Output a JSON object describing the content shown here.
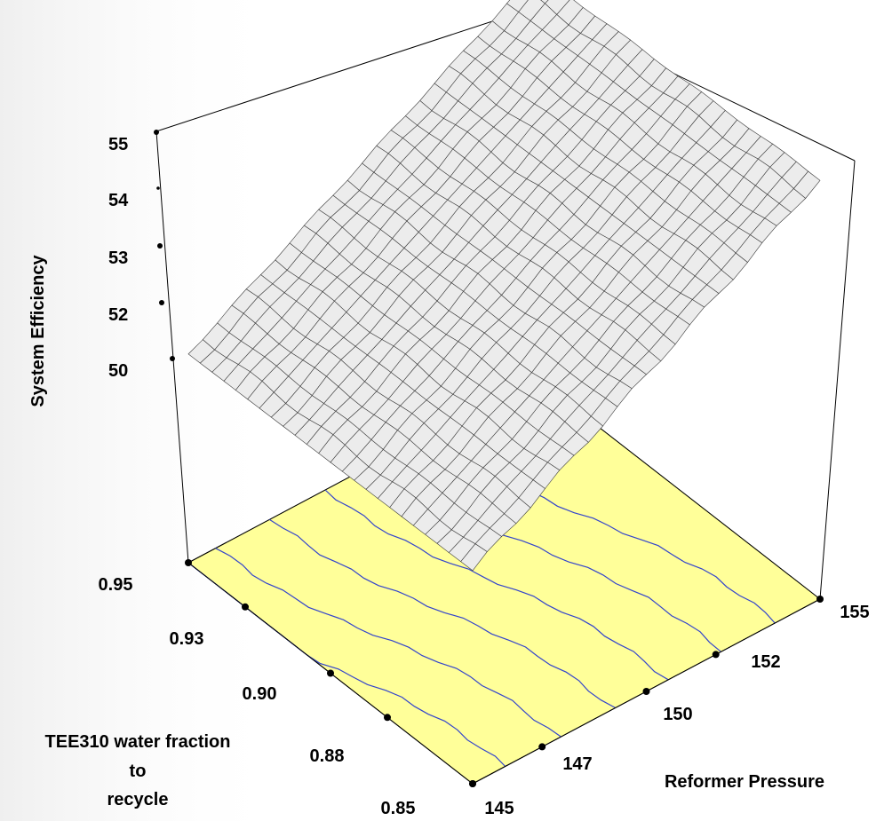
{
  "chart_data": {
    "type": "surface",
    "title": "",
    "zlabel": "System Efficiency",
    "xlabel": "Reformer Pressure",
    "ylabel_lines": [
      "TEE310 water fraction",
      "to",
      "recycle"
    ],
    "x_ticks": [
      "145",
      "147",
      "150",
      "152",
      "155"
    ],
    "y_ticks": [
      "0.85",
      "0.88",
      "0.90",
      "0.93",
      "0.95"
    ],
    "z_ticks": [
      "50",
      "52",
      "53",
      "54",
      "55"
    ],
    "x_range": [
      145,
      155
    ],
    "y_range": [
      0.85,
      0.95
    ],
    "z_range": [
      50,
      55
    ],
    "surface_corners": [
      {
        "x": 145,
        "y": 0.95,
        "z": 50.1
      },
      {
        "x": 155,
        "y": 0.95,
        "z": 54.5
      },
      {
        "x": 145,
        "y": 0.85,
        "z": 50.2
      },
      {
        "x": 155,
        "y": 0.85,
        "z": 54.8
      }
    ],
    "contour_count": 6,
    "colors": {
      "surface_fill": "#ececec",
      "mesh_line": "#3a3a3a",
      "floor_fill": "#ffff99",
      "contour": "#3344cc",
      "frame": "#000000"
    }
  }
}
